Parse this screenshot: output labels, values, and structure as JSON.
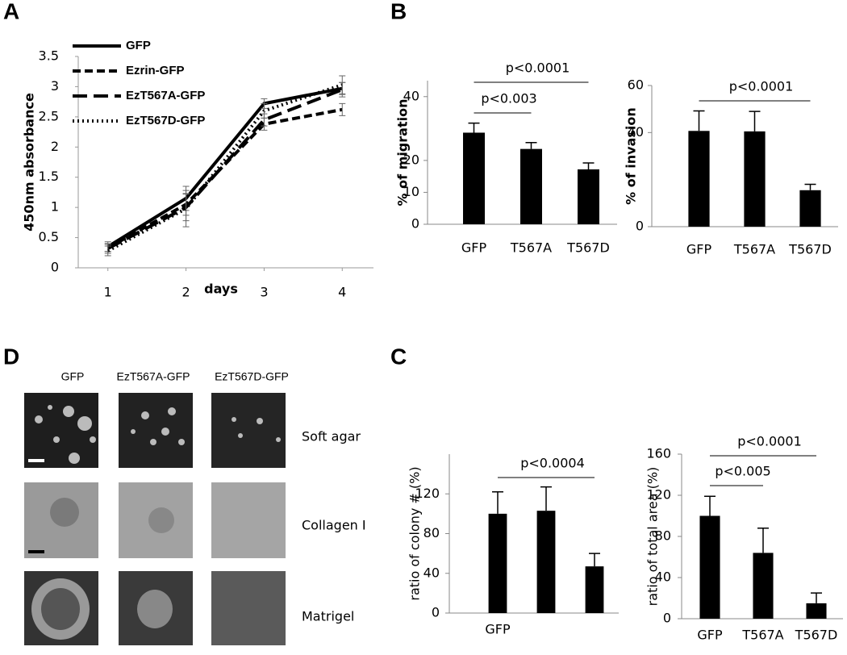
{
  "panel_labels": {
    "a": "A",
    "b": "B",
    "c": "C",
    "d": "D"
  },
  "chart_data": [
    {
      "type": "line",
      "x_label": "days",
      "y_label": "450nm absorbance",
      "x": [
        1,
        2,
        3,
        4
      ],
      "xlim": [
        0.6,
        4.4
      ],
      "xticks": [
        1,
        2,
        3,
        4
      ],
      "ylim": [
        0,
        3.5
      ],
      "yticks": [
        0,
        0.5,
        1,
        1.5,
        2,
        2.5,
        3,
        3.5
      ],
      "series": [
        {
          "name": "GFP",
          "color": "#000000",
          "dash": "solid",
          "values": [
            0.35,
            1.15,
            2.72,
            2.97
          ],
          "errors": [
            0.08,
            0.2,
            0.08,
            0.1
          ]
        },
        {
          "name": "Ezrin-GFP",
          "color": "#000000",
          "dash": "dashed",
          "values": [
            0.33,
            1.05,
            2.38,
            2.62
          ],
          "errors": [
            0.06,
            0.18,
            0.1,
            0.1
          ]
        },
        {
          "name": "EzT567A-GFP",
          "color": "#000000",
          "dash": "long-dashed",
          "values": [
            0.32,
            1.0,
            2.45,
            2.95
          ],
          "errors": [
            0.08,
            0.22,
            0.1,
            0.12
          ]
        },
        {
          "name": "EzT567D-GFP",
          "color": "#000000",
          "dash": "dotted",
          "values": [
            0.28,
            0.98,
            2.6,
            3.03
          ],
          "errors": [
            0.08,
            0.3,
            0.12,
            0.15
          ]
        }
      ]
    },
    {
      "type": "bar",
      "y_label": "% of migration",
      "categories": [
        "GFP",
        "T567A",
        "T567D"
      ],
      "values": [
        28.7,
        23.6,
        17.2
      ],
      "errors": [
        3,
        2,
        2
      ],
      "color": "#000000",
      "ylim": [
        0,
        45
      ],
      "yticks": [
        0,
        10,
        20,
        40
      ],
      "annotations": [
        {
          "text": "p<0.003",
          "span": [
            0,
            1
          ]
        },
        {
          "text": "p<0.0001",
          "span": [
            0,
            2
          ]
        }
      ]
    },
    {
      "type": "bar",
      "y_label": "% of invasion",
      "categories": [
        "GFP",
        "T567A",
        "T567D"
      ],
      "values": [
        40.7,
        40.5,
        15.5
      ],
      "errors": [
        8.5,
        8.5,
        2.5
      ],
      "color": "#000000",
      "ylim": [
        0,
        60
      ],
      "yticks": [
        0,
        40,
        60
      ],
      "annotations": [
        {
          "text": "p<0.0001",
          "span": [
            0,
            2
          ]
        }
      ]
    },
    {
      "type": "bar",
      "y_label": "ratio of colony # (%)",
      "categories": [
        "GFP",
        null,
        null
      ],
      "values": [
        100,
        103,
        47
      ],
      "errors": [
        22,
        24,
        13
      ],
      "color": "#000000",
      "ylim": [
        0,
        160
      ],
      "yticks": [
        0,
        40,
        80,
        120
      ],
      "annotations": [
        {
          "text": "p<0.0004",
          "span": [
            0,
            2
          ]
        }
      ]
    },
    {
      "type": "bar",
      "y_label": "ratio of total area (%)",
      "categories": [
        "GFP",
        "T567A",
        "T567D"
      ],
      "values": [
        100,
        64,
        15
      ],
      "errors": [
        19,
        24,
        10
      ],
      "color": "#000000",
      "ylim": [
        0,
        160
      ],
      "yticks": [
        0,
        40,
        80,
        120,
        160
      ],
      "annotations": [
        {
          "text": "p<0.005",
          "span": [
            0,
            1
          ]
        },
        {
          "text": "p<0.0001",
          "span": [
            0,
            2
          ]
        }
      ]
    }
  ],
  "micrographs": {
    "columns": [
      "GFP",
      "EzT567A-GFP",
      "EzT567D-GFP"
    ],
    "rows": [
      "Soft agar",
      "Collagen I",
      "Matrigel"
    ]
  }
}
